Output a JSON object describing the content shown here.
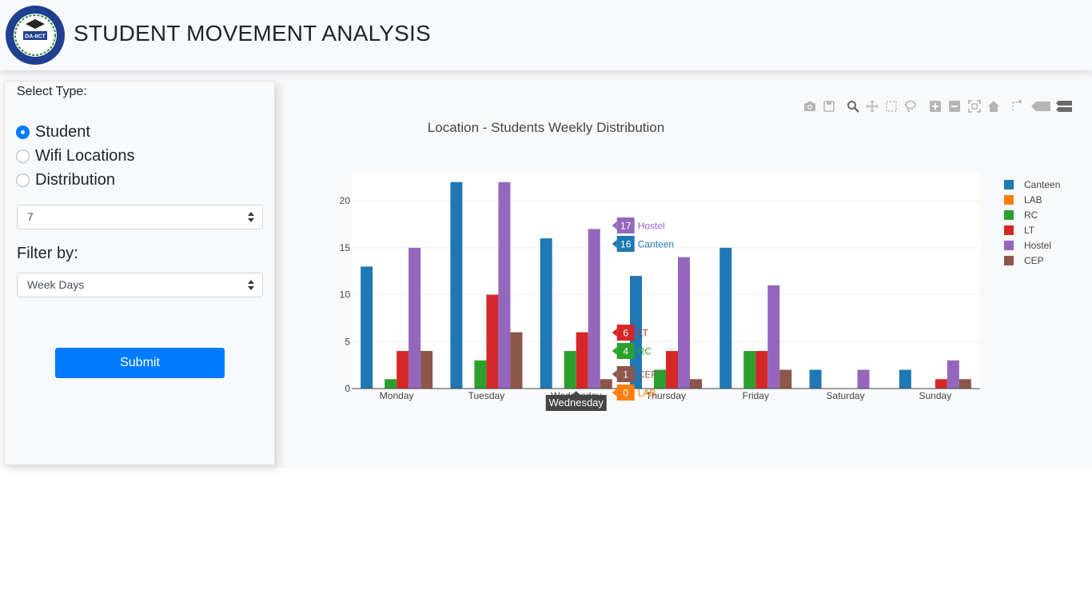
{
  "header": {
    "title": "STUDENT MOVEMENT ANALYSIS",
    "logo_text": "DA-IICT"
  },
  "sidebar": {
    "select_type_label": "Select Type:",
    "radios": [
      {
        "label": "Student",
        "checked": true
      },
      {
        "label": "Wifi Locations",
        "checked": false
      },
      {
        "label": "Distribution",
        "checked": false
      }
    ],
    "number_select_value": "7",
    "filter_label": "Filter by:",
    "filter_select_value": "Week Days",
    "submit_label": "Submit"
  },
  "modebar": {
    "icons": [
      "camera-icon",
      "save-icon",
      "zoom-icon",
      "pan-icon",
      "box-select-icon",
      "lasso-select-icon",
      "zoom-in-icon",
      "zoom-out-icon",
      "autoscale-icon",
      "reset-axes-icon",
      "spike-lines-icon",
      "hover-closest-icon",
      "hover-compare-icon"
    ]
  },
  "chart_data": {
    "type": "bar",
    "title": "Location - Students Weekly Distribution",
    "categories": [
      "Monday",
      "Tuesday",
      "Wednesday",
      "Thursday",
      "Friday",
      "Saturday",
      "Sunday"
    ],
    "series": [
      {
        "name": "Canteen",
        "color": "#1f77b4",
        "values": [
          13,
          22,
          16,
          12,
          15,
          2,
          2
        ]
      },
      {
        "name": "LAB",
        "color": "#ff7f0e",
        "values": [
          0,
          0,
          0,
          0,
          0,
          0,
          0
        ]
      },
      {
        "name": "RC",
        "color": "#2ca02c",
        "values": [
          1,
          3,
          4,
          2,
          4,
          0,
          0
        ]
      },
      {
        "name": "LT",
        "color": "#d62728",
        "values": [
          4,
          10,
          6,
          4,
          4,
          0,
          1
        ]
      },
      {
        "name": "Hostel",
        "color": "#9467bd",
        "values": [
          15,
          22,
          17,
          14,
          11,
          2,
          3
        ]
      },
      {
        "name": "CEP",
        "color": "#8c564b",
        "values": [
          4,
          6,
          1,
          1,
          2,
          0,
          1
        ]
      }
    ],
    "ylim": [
      0,
      23
    ],
    "yticks": [
      0,
      5,
      10,
      15,
      20
    ],
    "grid": true,
    "legend_position": "right",
    "hover": {
      "category_label": "Wednesday",
      "labels": [
        {
          "series": "Hostel",
          "value": "17"
        },
        {
          "series": "Canteen",
          "value": "16"
        },
        {
          "series": "LT",
          "value": "6"
        },
        {
          "series": "RC",
          "value": "4"
        },
        {
          "series": "CEP",
          "value": "1"
        },
        {
          "series": "LAB",
          "value": "0"
        }
      ]
    }
  }
}
